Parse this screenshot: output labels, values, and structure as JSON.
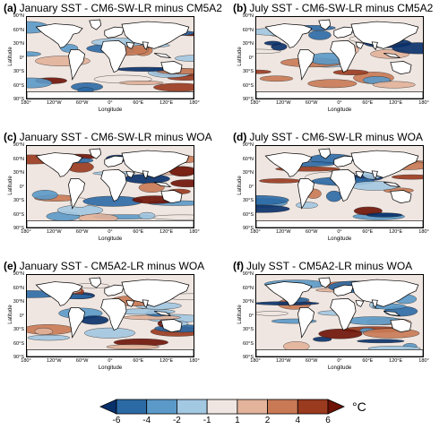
{
  "panels": [
    {
      "tag": "(a)",
      "title": "January SST - CM6-SW-LR minus CM5A2",
      "seed": 1
    },
    {
      "tag": "(b)",
      "title": "July SST - CM6-SW-LR minus CM5A2",
      "seed": 2
    },
    {
      "tag": "(c)",
      "title": "January SST - CM6-SW-LR minus WOA",
      "seed": 3
    },
    {
      "tag": "(d)",
      "title": "July SST - CM6-SW-LR minus WOA",
      "seed": 4
    },
    {
      "tag": "(e)",
      "title": "January SST - CM5A2-LR minus WOA",
      "seed": 5
    },
    {
      "tag": "(f)",
      "title": "July SST - CM5A2-LR minus WOA",
      "seed": 6
    }
  ],
  "axes": {
    "x_title": "Longitude",
    "y_title": "Latitude",
    "x_ticks": [
      "180°",
      "120°W",
      "60°W",
      "0°",
      "60°E",
      "120°E",
      "180°"
    ],
    "y_ticks": [
      "90°N",
      "60°N",
      "30°N",
      "0°",
      "30°S",
      "60°S",
      "90°S"
    ]
  },
  "colorbar": {
    "unit": "°C",
    "labels": [
      "-6",
      "-4",
      "-2",
      "-1",
      "1",
      "2",
      "4",
      "6"
    ],
    "colors": [
      "#08306b",
      "#2c6aa6",
      "#5b9ac8",
      "#a3c8e2",
      "#f0e6e1",
      "#e3b39b",
      "#c97a55",
      "#9a3a1e",
      "#6e1206"
    ]
  }
}
